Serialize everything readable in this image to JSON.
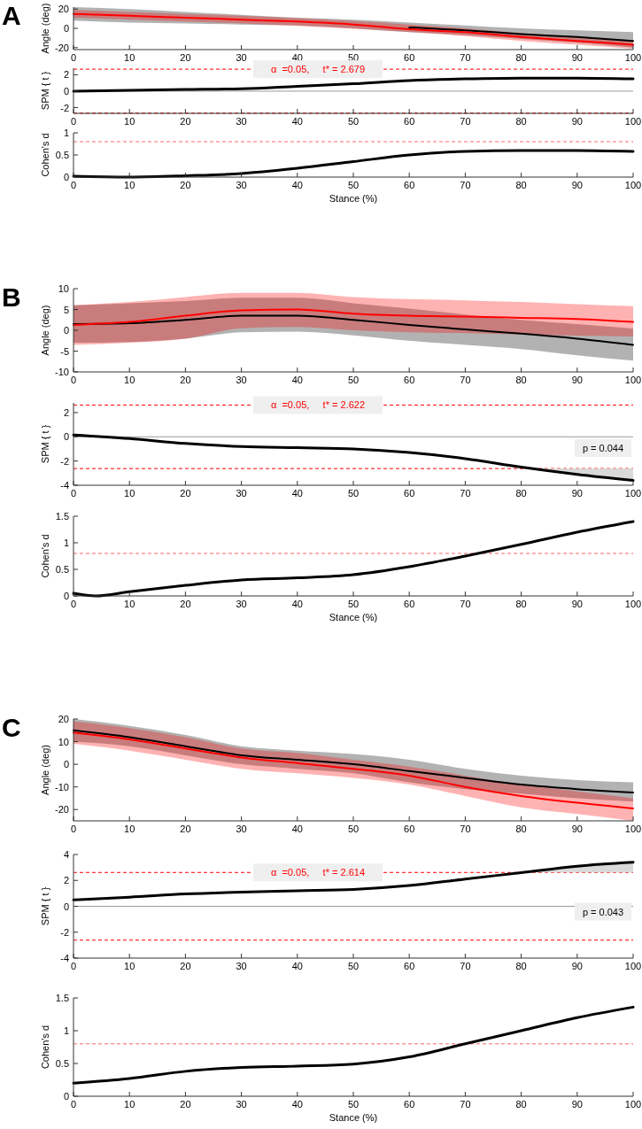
{
  "chart_data": [
    {
      "type": "line",
      "title": "A",
      "ylabel": "Angle (deg)",
      "xlim": [
        0,
        100
      ],
      "xticks": [
        0,
        10,
        20,
        30,
        40,
        50,
        60,
        70,
        80,
        90,
        100
      ],
      "ylim": [
        -22,
        22
      ],
      "yticks": [
        -20,
        0,
        20
      ],
      "grid": false,
      "x": [
        0,
        10,
        20,
        30,
        40,
        50,
        60,
        70,
        80,
        90,
        100
      ],
      "series": [
        {
          "color": "#000000",
          "values": [
            null,
            null,
            null,
            null,
            null,
            null,
            1,
            -2,
            -6,
            -9,
            -13
          ],
          "lower": [
            8,
            6,
            5,
            4,
            3,
            0,
            -4,
            -7,
            -11,
            -15,
            -20
          ],
          "upper": [
            22,
            20,
            17,
            14,
            11,
            9,
            6,
            3,
            0,
            -2,
            -4
          ]
        },
        {
          "color": "#ff0000",
          "values": [
            15,
            13,
            11,
            9,
            7,
            4,
            -1,
            -4,
            -9,
            -13,
            -17
          ],
          "lower": [
            11,
            9,
            7,
            5,
            2.5,
            -0.5,
            -4,
            -8,
            -13,
            -17,
            -21
          ],
          "upper": [
            19,
            17,
            15,
            13,
            10.5,
            7.5,
            4,
            0,
            -5,
            -9,
            -13
          ]
        }
      ]
    },
    {
      "type": "line",
      "ylabel": "SPM { t }",
      "xlim": [
        0,
        100
      ],
      "xticks": [
        0,
        10,
        20,
        30,
        40,
        50,
        60,
        70,
        80,
        90,
        100
      ],
      "ylim": [
        -2.7,
        2.8
      ],
      "yticks": [
        -2,
        0,
        2
      ],
      "grid": false,
      "x": [
        0,
        10,
        20,
        30,
        40,
        50,
        60,
        70,
        80,
        90,
        100
      ],
      "series": [
        {
          "color": "#000000",
          "values": [
            0,
            0.1,
            0.2,
            0.3,
            0.6,
            0.9,
            1.3,
            1.5,
            1.6,
            1.6,
            1.5
          ]
        }
      ],
      "ref_lines": [
        {
          "axis": "y",
          "value": 0,
          "color": "#999999",
          "line_style": "solid"
        },
        {
          "axis": "y",
          "value": 2.679,
          "color": "#ff0000",
          "line_style": "dashed"
        },
        {
          "axis": "y",
          "value": -2.679,
          "color": "#ff0000",
          "line_style": "dashed"
        }
      ],
      "annotations": [
        "α  =0.05,     t* = 2.679"
      ]
    },
    {
      "type": "line",
      "ylabel": "Cohen's d",
      "xlabel": "Stance (%)",
      "xlim": [
        0,
        100
      ],
      "xticks": [
        0,
        10,
        20,
        30,
        40,
        50,
        60,
        70,
        80,
        90,
        100
      ],
      "ylim": [
        0,
        1
      ],
      "yticks": [
        0,
        0.5,
        1
      ],
      "grid": false,
      "x": [
        0,
        10,
        20,
        30,
        40,
        50,
        60,
        70,
        80,
        90,
        100
      ],
      "series": [
        {
          "color": "#000000",
          "values": [
            0.02,
            0,
            0.03,
            0.08,
            0.2,
            0.35,
            0.5,
            0.58,
            0.6,
            0.6,
            0.58
          ]
        }
      ],
      "ref_lines": [
        {
          "axis": "y",
          "value": 0.8,
          "color": "#ff6666",
          "line_style": "dashed"
        }
      ]
    },
    {
      "type": "line",
      "title": "B",
      "ylabel": "Angle (deg)",
      "xlim": [
        0,
        100
      ],
      "xticks": [
        0,
        10,
        20,
        30,
        40,
        50,
        60,
        70,
        80,
        90,
        100
      ],
      "ylim": [
        -10,
        10
      ],
      "yticks": [
        -10,
        -5,
        0,
        5,
        10
      ],
      "grid": false,
      "x": [
        0,
        10,
        20,
        30,
        40,
        50,
        60,
        70,
        80,
        90,
        100
      ],
      "series": [
        {
          "color": "#000000",
          "values": [
            1.5,
            1.7,
            2.5,
            3.5,
            3.5,
            2.5,
            1.3,
            0.2,
            -0.8,
            -2,
            -3.5
          ],
          "lower": [
            -3,
            -2.8,
            -2,
            -0.5,
            -0.3,
            -1.2,
            -2.5,
            -3.5,
            -4.5,
            -6,
            -7.3
          ],
          "upper": [
            6,
            6.5,
            7,
            7.8,
            7.8,
            6.5,
            5.2,
            3.8,
            2.5,
            1.5,
            0.4
          ]
        },
        {
          "color": "#ff0000",
          "values": [
            1.3,
            2,
            3.5,
            4.8,
            5,
            4,
            3.5,
            3.3,
            3,
            2.7,
            2
          ],
          "lower": [
            -3.5,
            -3,
            -2,
            0.5,
            0.8,
            0,
            -0.5,
            -0.7,
            -1,
            -1.3,
            -1.5
          ],
          "upper": [
            6,
            6.8,
            8,
            9,
            9,
            8,
            7.5,
            7.2,
            6.8,
            6.3,
            5.8
          ]
        }
      ]
    },
    {
      "type": "line",
      "ylabel": "SPM { t }",
      "xlim": [
        0,
        100
      ],
      "xticks": [
        0,
        10,
        20,
        30,
        40,
        50,
        60,
        70,
        80,
        90,
        100
      ],
      "ylim": [
        -4,
        2.8
      ],
      "yticks": [
        -4,
        -2,
        0,
        2
      ],
      "grid": false,
      "x": [
        0,
        10,
        20,
        30,
        40,
        50,
        60,
        70,
        80,
        90,
        100
      ],
      "series": [
        {
          "type": "area",
          "color": "#d9d9d9",
          "x": [
            83,
            90,
            100
          ],
          "values": [
            -2.6,
            -3.1,
            -3.6
          ]
        },
        {
          "color": "#000000",
          "values": [
            0.15,
            -0.15,
            -0.55,
            -0.8,
            -0.9,
            -1,
            -1.3,
            -1.8,
            -2.5,
            -3.1,
            -3.6
          ]
        }
      ],
      "ref_lines": [
        {
          "axis": "y",
          "value": 0,
          "color": "#999999",
          "line_style": "solid"
        },
        {
          "axis": "y",
          "value": 2.622,
          "color": "#ff0000",
          "line_style": "dashed"
        },
        {
          "axis": "y",
          "value": -2.622,
          "color": "#ff0000",
          "line_style": "dashed"
        }
      ],
      "annotations": [
        "α  =0.05,     t* = 2.622",
        "p = 0.044"
      ]
    },
    {
      "type": "line",
      "ylabel": "Cohen's d",
      "xlabel": "Stance (%)",
      "xlim": [
        0,
        100
      ],
      "xticks": [
        0,
        10,
        20,
        30,
        40,
        50,
        60,
        70,
        80,
        90,
        100
      ],
      "ylim": [
        0,
        1.5
      ],
      "yticks": [
        0,
        0.5,
        1,
        1.5
      ],
      "grid": false,
      "series": [
        {
          "color": "#000000",
          "x": [
            0,
            4,
            10,
            20,
            30,
            40,
            50,
            60,
            70,
            80,
            90,
            100
          ],
          "values": [
            0.05,
            0,
            0.08,
            0.2,
            0.3,
            0.34,
            0.4,
            0.55,
            0.75,
            0.97,
            1.2,
            1.4
          ]
        }
      ],
      "ref_lines": [
        {
          "axis": "y",
          "value": 0.8,
          "color": "#ff6666",
          "line_style": "dashed"
        }
      ]
    },
    {
      "type": "line",
      "title": "C",
      "ylabel": "Angle (deg)",
      "xlim": [
        0,
        100
      ],
      "xticks": [
        0,
        10,
        20,
        30,
        40,
        50,
        60,
        70,
        80,
        90,
        100
      ],
      "ylim": [
        -25,
        20
      ],
      "yticks": [
        -20,
        -10,
        0,
        10,
        20
      ],
      "grid": false,
      "x": [
        0,
        10,
        20,
        30,
        40,
        50,
        60,
        70,
        80,
        90,
        100
      ],
      "series": [
        {
          "color": "#000000",
          "values": [
            15,
            12,
            8,
            4,
            2,
            0,
            -3,
            -6,
            -9,
            -11,
            -12.5
          ],
          "lower": [
            10,
            8,
            4,
            0,
            -2,
            -4,
            -8,
            -11,
            -13,
            -15,
            -16.5
          ],
          "upper": [
            20,
            17,
            13,
            8,
            6,
            4.5,
            2,
            -2,
            -5,
            -7,
            -8
          ]
        },
        {
          "color": "#ff0000",
          "values": [
            14,
            11,
            7,
            3,
            0.5,
            -2,
            -5,
            -10,
            -14,
            -17,
            -19.5
          ],
          "lower": [
            9,
            6,
            2,
            -2,
            -4,
            -6,
            -9,
            -14,
            -19,
            -22,
            -25
          ],
          "upper": [
            19,
            16,
            12,
            7,
            5,
            2,
            -1,
            -5,
            -9,
            -12,
            -15
          ]
        }
      ]
    },
    {
      "type": "line",
      "ylabel": "SPM { t }",
      "xlim": [
        0,
        100
      ],
      "xticks": [
        0,
        10,
        20,
        30,
        40,
        50,
        60,
        70,
        80,
        90,
        100
      ],
      "ylim": [
        -4,
        4
      ],
      "yticks": [
        -4,
        -2,
        0,
        2,
        4
      ],
      "grid": false,
      "x": [
        0,
        10,
        20,
        30,
        40,
        50,
        60,
        70,
        80,
        90,
        100
      ],
      "series": [
        {
          "type": "area",
          "color": "#d9d9d9",
          "x": [
            79,
            90,
            100
          ],
          "values": [
            2.6,
            3.1,
            3.4
          ]
        },
        {
          "color": "#000000",
          "values": [
            0.5,
            0.7,
            0.95,
            1.1,
            1.2,
            1.3,
            1.6,
            2.1,
            2.6,
            3.1,
            3.4
          ]
        }
      ],
      "ref_lines": [
        {
          "axis": "y",
          "value": 0,
          "color": "#999999",
          "line_style": "solid"
        },
        {
          "axis": "y",
          "value": 2.614,
          "color": "#ff0000",
          "line_style": "dashed"
        },
        {
          "axis": "y",
          "value": -2.614,
          "color": "#ff0000",
          "line_style": "dashed"
        }
      ],
      "annotations": [
        "α  =0.05,     t* = 2.614",
        "p = 0.043"
      ]
    },
    {
      "type": "line",
      "ylabel": "Cohen's d",
      "xlabel": "Stance (%)",
      "xlim": [
        0,
        100
      ],
      "xticks": [
        0,
        10,
        20,
        30,
        40,
        50,
        60,
        70,
        80,
        90,
        100
      ],
      "ylim": [
        0,
        1.5
      ],
      "yticks": [
        0,
        0.5,
        1,
        1.5
      ],
      "grid": false,
      "x": [
        0,
        10,
        20,
        30,
        40,
        50,
        60,
        70,
        80,
        90,
        100
      ],
      "series": [
        {
          "color": "#000000",
          "values": [
            0.2,
            0.27,
            0.38,
            0.44,
            0.46,
            0.49,
            0.6,
            0.8,
            1,
            1.2,
            1.36
          ]
        }
      ],
      "ref_lines": [
        {
          "axis": "y",
          "value": 0.8,
          "color": "#ff6666",
          "line_style": "dashed"
        }
      ]
    }
  ]
}
